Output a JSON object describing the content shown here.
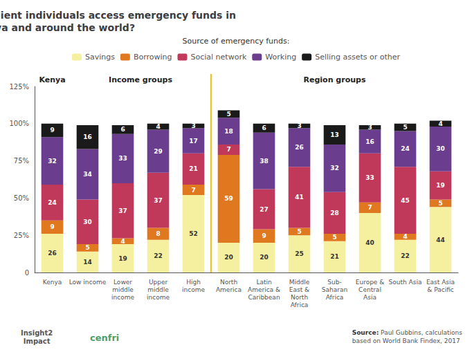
{
  "chart_data": {
    "type": "bar",
    "title": "How do financially resilient individuals access emergency funds in\nKenya and around the world?",
    "legend_title": "Source of emergency funds:",
    "categories": [
      "Kenya",
      "Low income",
      "Lower\nmiddle\nincome",
      "Upper\nmiddle\nincome",
      "High\nincome",
      "North\nAmerica",
      "Latin\nAmerica &\nCaribbean",
      "Middle\nEast &\nNorth\nAfrica",
      "Sub-\nSaharan\nAfrica",
      "Europe &\nCentral\nAsia",
      "South Asia",
      "East Asia\n& Pacific"
    ],
    "series": [
      {
        "name": "Savings",
        "color": "#f5f0a0",
        "values": [
          26,
          14,
          19,
          22,
          52,
          20,
          20,
          25,
          21,
          40,
          22,
          44
        ]
      },
      {
        "name": "Borrowing",
        "color": "#e07820",
        "values": [
          9,
          5,
          4,
          8,
          7,
          59,
          9,
          5,
          5,
          7,
          4,
          5
        ]
      },
      {
        "name": "Social network",
        "color": "#c0395a",
        "values": [
          24,
          30,
          37,
          37,
          21,
          7,
          27,
          41,
          28,
          33,
          45,
          19
        ]
      },
      {
        "name": "Working",
        "color": "#6a3d8f",
        "values": [
          32,
          34,
          33,
          29,
          17,
          18,
          38,
          26,
          32,
          16,
          24,
          30
        ]
      },
      {
        "name": "Selling assets or other",
        "color": "#1a1a1a",
        "values": [
          9,
          16,
          6,
          4,
          3,
          5,
          6,
          3,
          13,
          3,
          5,
          4
        ]
      }
    ],
    "stacked": true,
    "data_labels": true,
    "legend": "top",
    "grid": false,
    "ylim": [
      0,
      125
    ],
    "yticks": [
      0,
      {
        "value": 25,
        "label": "25%"
      },
      {
        "value": 50,
        "label": "50%"
      },
      {
        "value": 75,
        "label": "75%"
      },
      {
        "value": 100,
        "label": "100%"
      },
      {
        "value": 125,
        "label": "125%"
      }
    ],
    "group_labels": [
      "Kenya",
      "Income groups",
      "Region groups"
    ],
    "source": {
      "label": "Source:",
      "text": "Paul Gubbins, calculations\nbased on World Bank Findex, 2017"
    },
    "annotations": [
      "Insight2\nImpact",
      "cenfri"
    ]
  }
}
